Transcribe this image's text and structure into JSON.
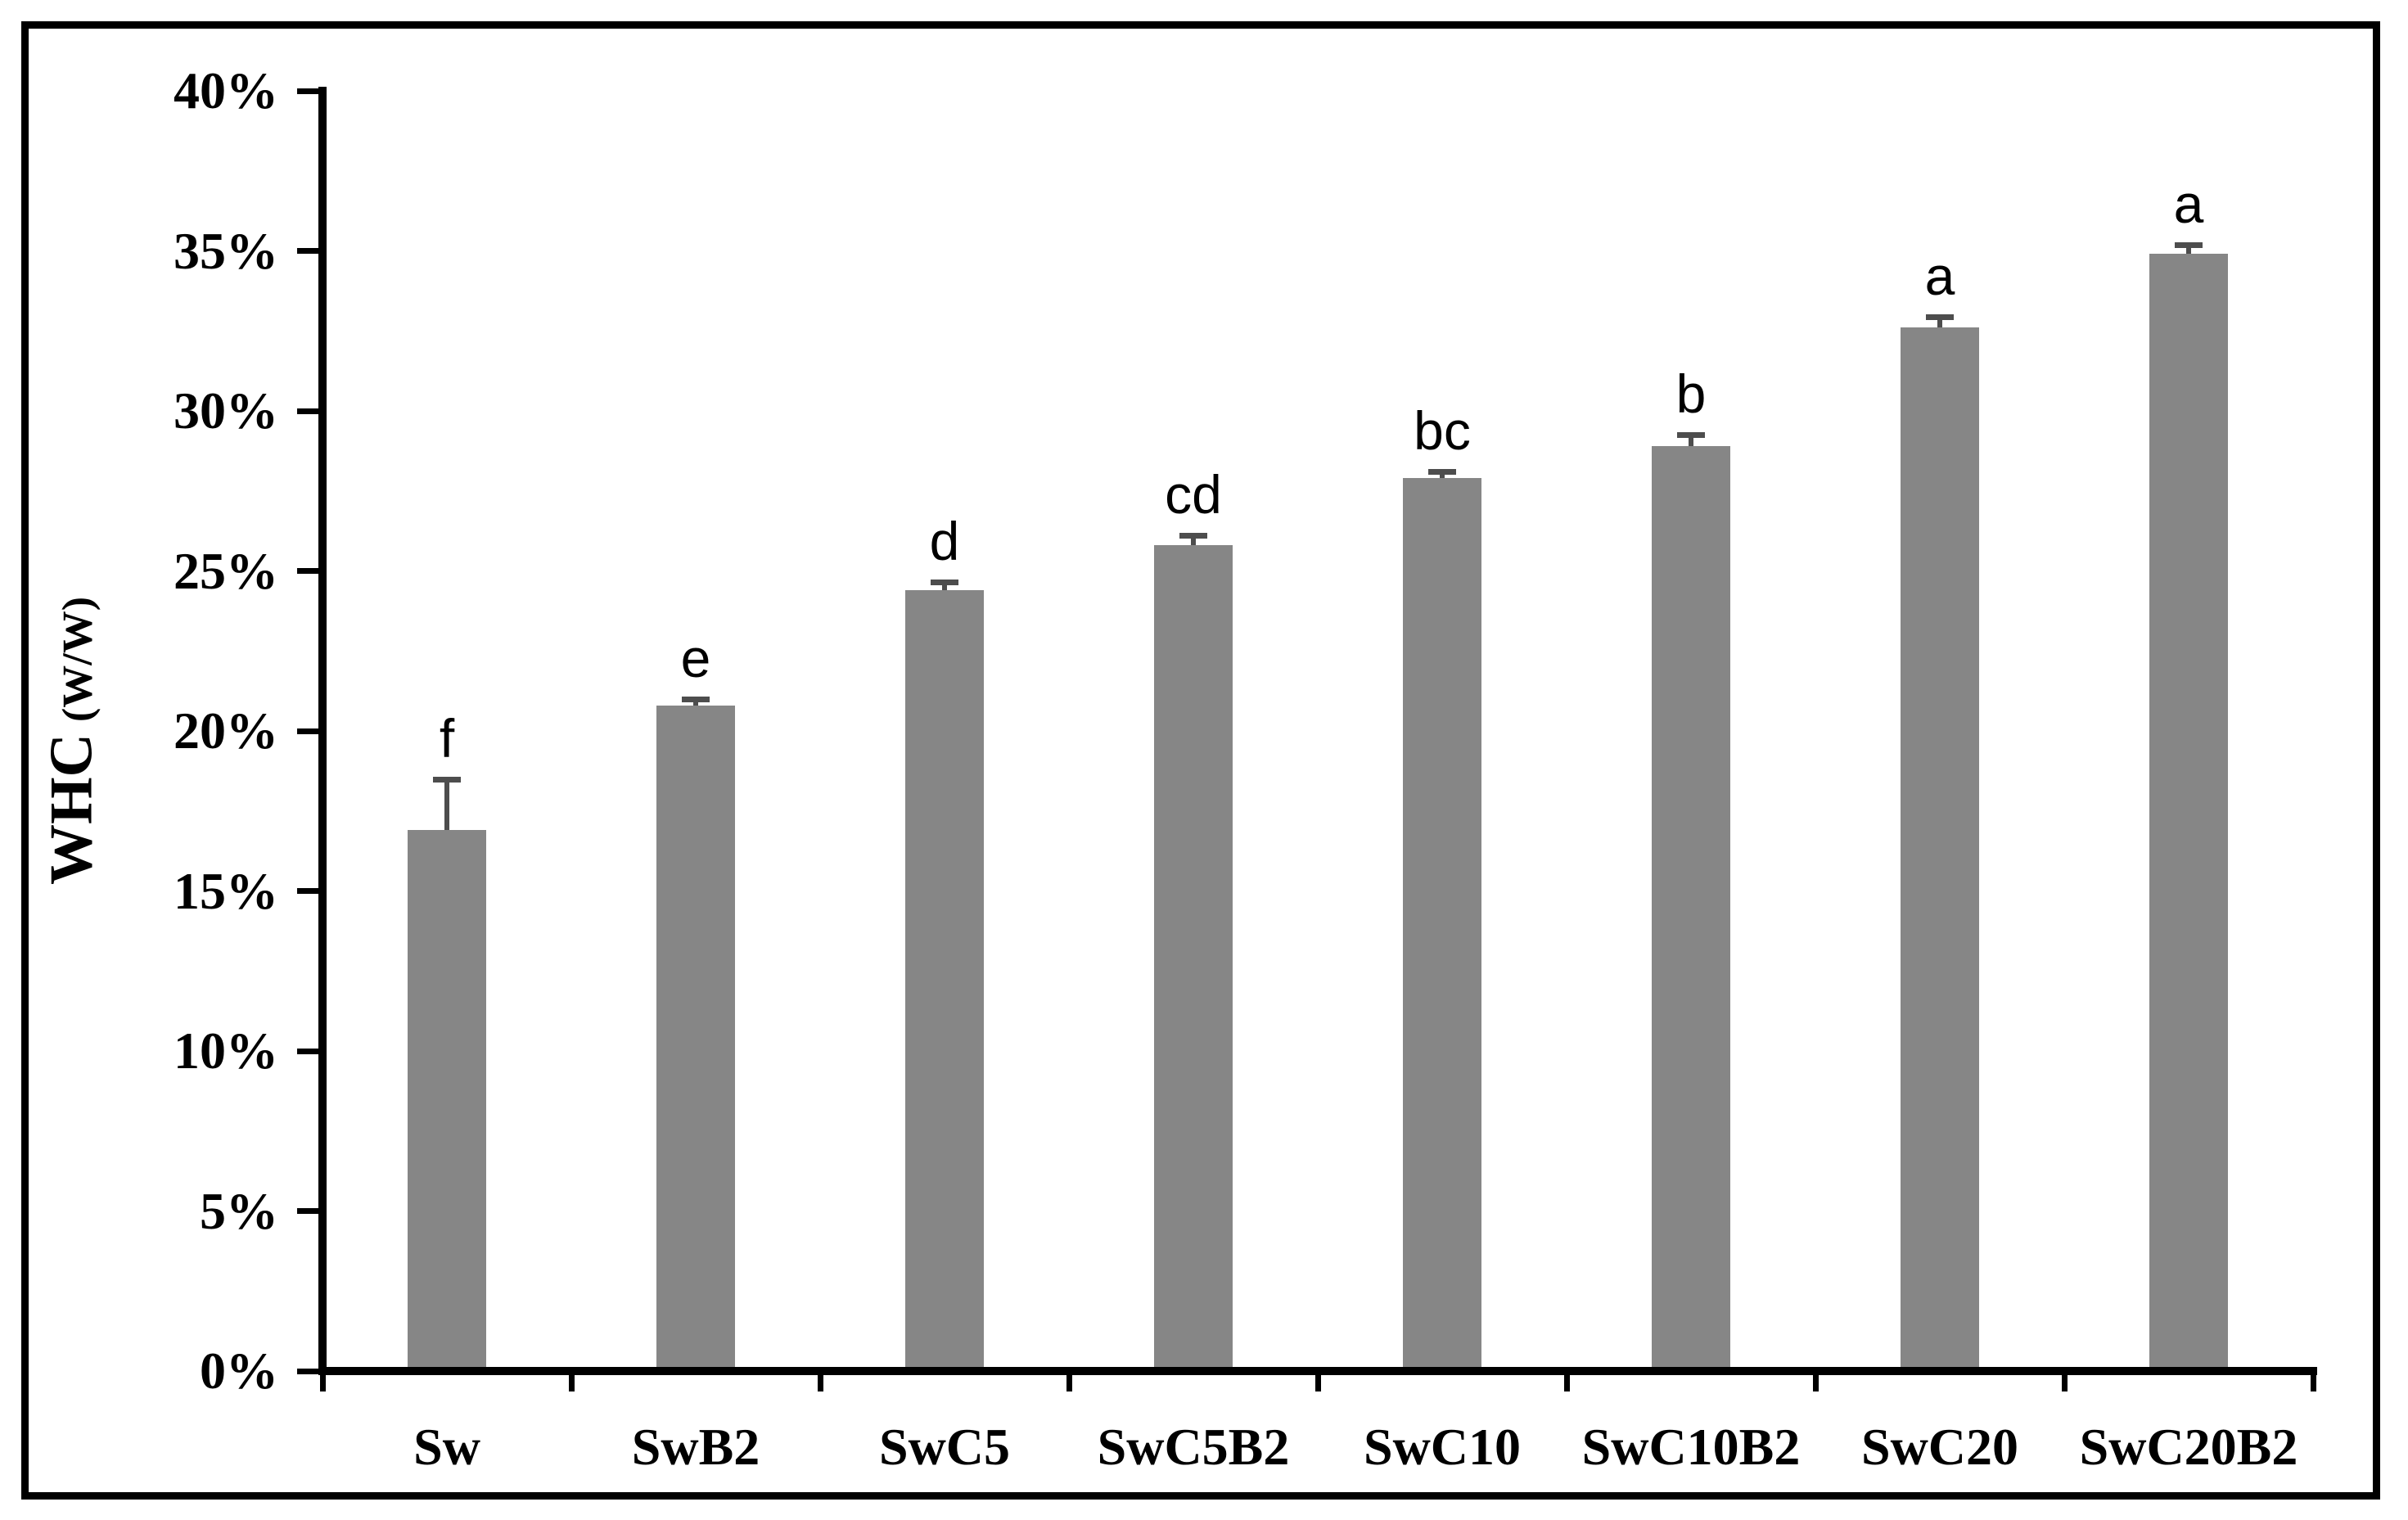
{
  "figure": {
    "y_axis_title_main": "WHC",
    "y_axis_title_unit": "(W/W)"
  },
  "chart_data": {
    "type": "bar",
    "title": "",
    "xlabel": "",
    "ylabel": "WHC (W/W)",
    "categories": [
      "Sw",
      "SwB2",
      "SwC5",
      "SwC5B2",
      "SwC10",
      "SwC10B2",
      "SwC20",
      "SwC20B2"
    ],
    "values": [
      16.9,
      20.8,
      24.4,
      25.8,
      27.9,
      28.9,
      32.6,
      34.9
    ],
    "errors_plus": [
      1.6,
      0.2,
      0.25,
      0.3,
      0.2,
      0.35,
      0.35,
      0.3
    ],
    "sig_letters": [
      "f",
      "e",
      "d",
      "cd",
      "bc",
      "b",
      "a",
      "a"
    ],
    "ylim": [
      0,
      40
    ],
    "ytick_step": 5,
    "ytick_labels": [
      "0%",
      "5%",
      "10%",
      "15%",
      "20%",
      "25%",
      "30%",
      "35%",
      "40%"
    ],
    "grid": false,
    "legend": null,
    "bar_color": "#868686",
    "error_bar_color": "#4d4d4d",
    "axis_color": "#000000",
    "value_unit": "percent (w/w)"
  }
}
